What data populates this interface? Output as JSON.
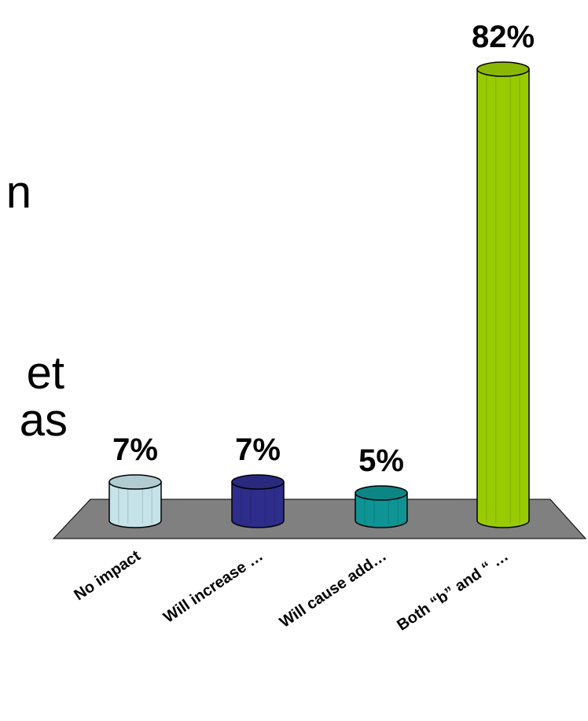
{
  "slide_text_fragments": [
    "n",
    "et",
    "as"
  ],
  "chart_data": {
    "type": "bar",
    "style": "3d-cylinder",
    "title": "",
    "xlabel": "",
    "ylabel": "",
    "ylim": [
      0,
      100
    ],
    "grid": false,
    "legend": "none",
    "categories": [
      "No impact",
      "Will increase …",
      "Will cause add…",
      "Both “b” and “ …"
    ],
    "values": [
      7,
      7,
      5,
      82
    ],
    "data_labels": [
      "7%",
      "7%",
      "5%",
      "82%"
    ],
    "colors": [
      "#C5E3E8",
      "#2E2D8C",
      "#0E9494",
      "#99CC00"
    ],
    "floor_color": "#808080"
  }
}
